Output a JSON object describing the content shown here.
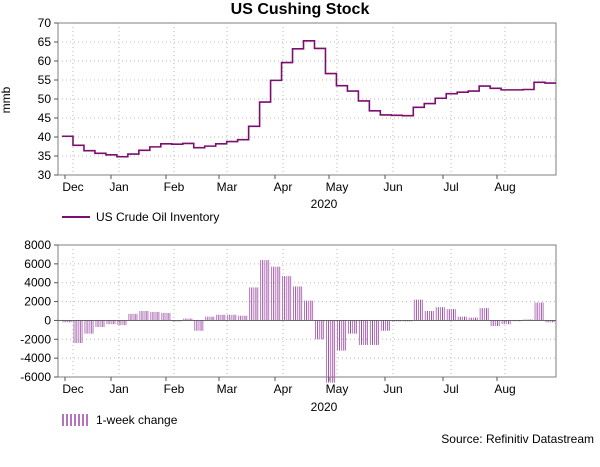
{
  "title": "US Cushing Stock",
  "source": "Source: Refinitiv Datastream",
  "chart_data": [
    {
      "type": "line",
      "ylabel": "mmb",
      "xlabel": "2020",
      "ylim": [
        30,
        70
      ],
      "yticks": [
        30,
        35,
        40,
        45,
        50,
        55,
        60,
        65,
        70
      ],
      "month_labels": [
        "Dec",
        "Jan",
        "Feb",
        "Mar",
        "Apr",
        "May",
        "Jun",
        "Jul",
        "Aug"
      ],
      "legend": "US Crude Oil Inventory",
      "color": "#7a0f6e",
      "series": [
        {
          "name": "US Crude Oil Inventory",
          "values": [
            40.2,
            37.8,
            36.4,
            35.7,
            35.3,
            34.8,
            35.5,
            36.5,
            37.4,
            38.2,
            38.1,
            38.3,
            37.2,
            37.6,
            38.2,
            38.8,
            39.3,
            42.8,
            49.2,
            54.9,
            59.6,
            63.2,
            65.3,
            63.3,
            56.7,
            53.5,
            52.1,
            49.5,
            46.9,
            45.8,
            45.7,
            45.6,
            47.8,
            48.8,
            50.2,
            51.4,
            51.8,
            52.1,
            53.4,
            52.8,
            52.4,
            52.4,
            52.5,
            54.4,
            54.2
          ]
        }
      ]
    },
    {
      "type": "bar",
      "ylabel": "",
      "xlabel": "2020",
      "ylim": [
        -6000,
        8000
      ],
      "yticks": [
        -6000,
        -4000,
        -2000,
        0,
        2000,
        4000,
        6000,
        8000
      ],
      "month_labels": [
        "Dec",
        "Jan",
        "Feb",
        "Mar",
        "Apr",
        "May",
        "Jun",
        "Jul",
        "Aug"
      ],
      "legend": "1-week change",
      "color": "#9a4fa0",
      "series": [
        {
          "name": "1-week change",
          "values": [
            -200,
            -2400,
            -1400,
            -700,
            -400,
            -500,
            700,
            1000,
            900,
            800,
            -100,
            200,
            -1100,
            400,
            600,
            600,
            500,
            3500,
            6400,
            5700,
            4700,
            3600,
            2100,
            -2000,
            -6600,
            -3200,
            -1400,
            -2600,
            -2600,
            -1100,
            -100,
            -100,
            2200,
            1000,
            1400,
            1200,
            400,
            300,
            1300,
            -600,
            -400,
            0,
            100,
            1900,
            -200
          ]
        }
      ]
    }
  ]
}
